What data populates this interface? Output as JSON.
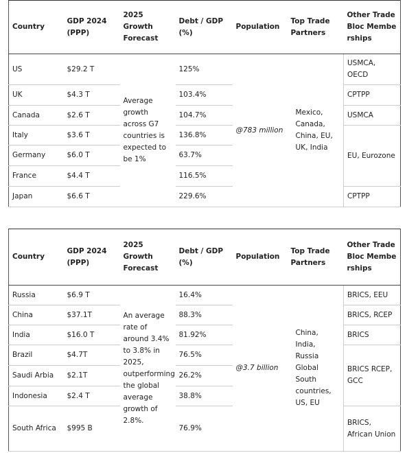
{
  "tables": [
    {
      "headers": [
        "Country",
        "GDP 2024 (PPP)",
        "2025 Growth Forecast",
        "Debt / GDP (%)",
        "Population",
        "Top Trade Partners",
        "Other Trade Bloc Memberships"
      ],
      "rows": [
        [
          "US",
          "$29.2 T",
          "125%"
        ],
        [
          "UK",
          "$4.3 T",
          "103.4%"
        ],
        [
          "Canada",
          "$2.6 T",
          "104.7%"
        ],
        [
          "Italy",
          "$3.6 T",
          "136.8%"
        ],
        [
          "Germany",
          "$6.0 T",
          "63.7%"
        ],
        [
          "France",
          "$4.4 T",
          "116.5%"
        ],
        [
          "Japan",
          "$6.6 T",
          "229.6%"
        ]
      ],
      "growth": "Average growth across G7 countries is expected to be 1%",
      "population": "@783 million",
      "partners": "Mexico, Canada, China, EU, UK, India",
      "blocs": [
        "USMCA, OECD",
        "CPTPP",
        "USMCA",
        "EU, Eurozone",
        "CPTPP"
      ]
    },
    {
      "headers": [
        "Country",
        "GDP 2024 (PPP)",
        "2025 Growth Forecast",
        "Debt / GDP (%)",
        "Population",
        "Top Trade Partners",
        "Other Trade Bloc Memberships"
      ],
      "rows": [
        [
          "Russia",
          "$6.9 T",
          "16.4%"
        ],
        [
          "China",
          "$37.1T",
          "88.3%"
        ],
        [
          "India",
          "$16.0 T",
          "81.92%"
        ],
        [
          "Brazil",
          "$4.7T",
          "76.5%"
        ],
        [
          "Saudi Arbia",
          "$2.1T",
          "26.2%"
        ],
        [
          "Indonesia",
          "$2.4 T",
          "38.8%"
        ],
        [
          "South Africa",
          "$995 B",
          "76.9%"
        ]
      ],
      "growth": "An average rate of around 3.4% to 3.8% in 2025, outperforming the global average growth of 2.8%.",
      "population": "@3.7 billion",
      "partners": "China, India, Russia Global South countries, US, EU",
      "blocs": [
        "BRICS, EEU",
        "BRICS, RCEP",
        "BRICS",
        "BRICS RCEP, GCC",
        "BRICS, African Union"
      ]
    }
  ]
}
